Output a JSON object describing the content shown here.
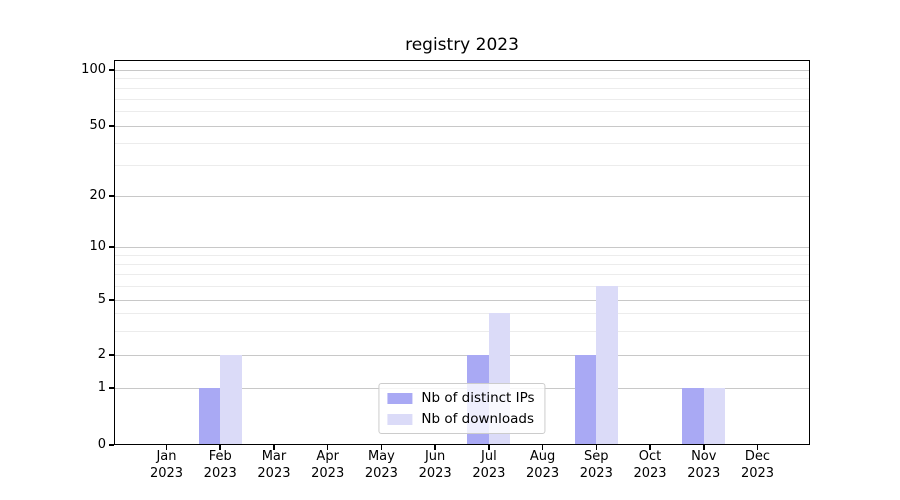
{
  "chart_data": {
    "type": "bar",
    "title": "registry 2023",
    "categories": [
      {
        "month": "Jan",
        "year": "2023"
      },
      {
        "month": "Feb",
        "year": "2023"
      },
      {
        "month": "Mar",
        "year": "2023"
      },
      {
        "month": "Apr",
        "year": "2023"
      },
      {
        "month": "May",
        "year": "2023"
      },
      {
        "month": "Jun",
        "year": "2023"
      },
      {
        "month": "Jul",
        "year": "2023"
      },
      {
        "month": "Aug",
        "year": "2023"
      },
      {
        "month": "Sep",
        "year": "2023"
      },
      {
        "month": "Oct",
        "year": "2023"
      },
      {
        "month": "Nov",
        "year": "2023"
      },
      {
        "month": "Dec",
        "year": "2023"
      }
    ],
    "series": [
      {
        "name": "Nb of distinct IPs",
        "color": "#a9a9f4",
        "values": [
          0,
          1,
          0,
          0,
          0,
          0,
          2,
          0,
          2,
          0,
          1,
          0
        ]
      },
      {
        "name": "Nb of downloads",
        "color": "#dbdbf8",
        "values": [
          0,
          2,
          0,
          0,
          0,
          0,
          4,
          0,
          6,
          0,
          1,
          0
        ]
      }
    ],
    "xlabel": "",
    "ylabel": "",
    "y_axis": {
      "scale": "symlog-like",
      "ticks": [
        0,
        1,
        2,
        5,
        10,
        20,
        50,
        100
      ],
      "minor_ticks": [
        3,
        4,
        6,
        7,
        8,
        9,
        30,
        40,
        60,
        70,
        80,
        90
      ],
      "scale_anchors": [
        [
          0,
          0.0
        ],
        [
          1,
          0.148
        ],
        [
          2,
          0.234
        ],
        [
          5,
          0.377
        ],
        [
          10,
          0.514
        ],
        [
          20,
          0.647
        ],
        [
          50,
          0.829
        ],
        [
          100,
          0.974
        ]
      ],
      "ylim_top_value": 120
    },
    "grid": true,
    "legend": {
      "position": "lower center"
    }
  }
}
